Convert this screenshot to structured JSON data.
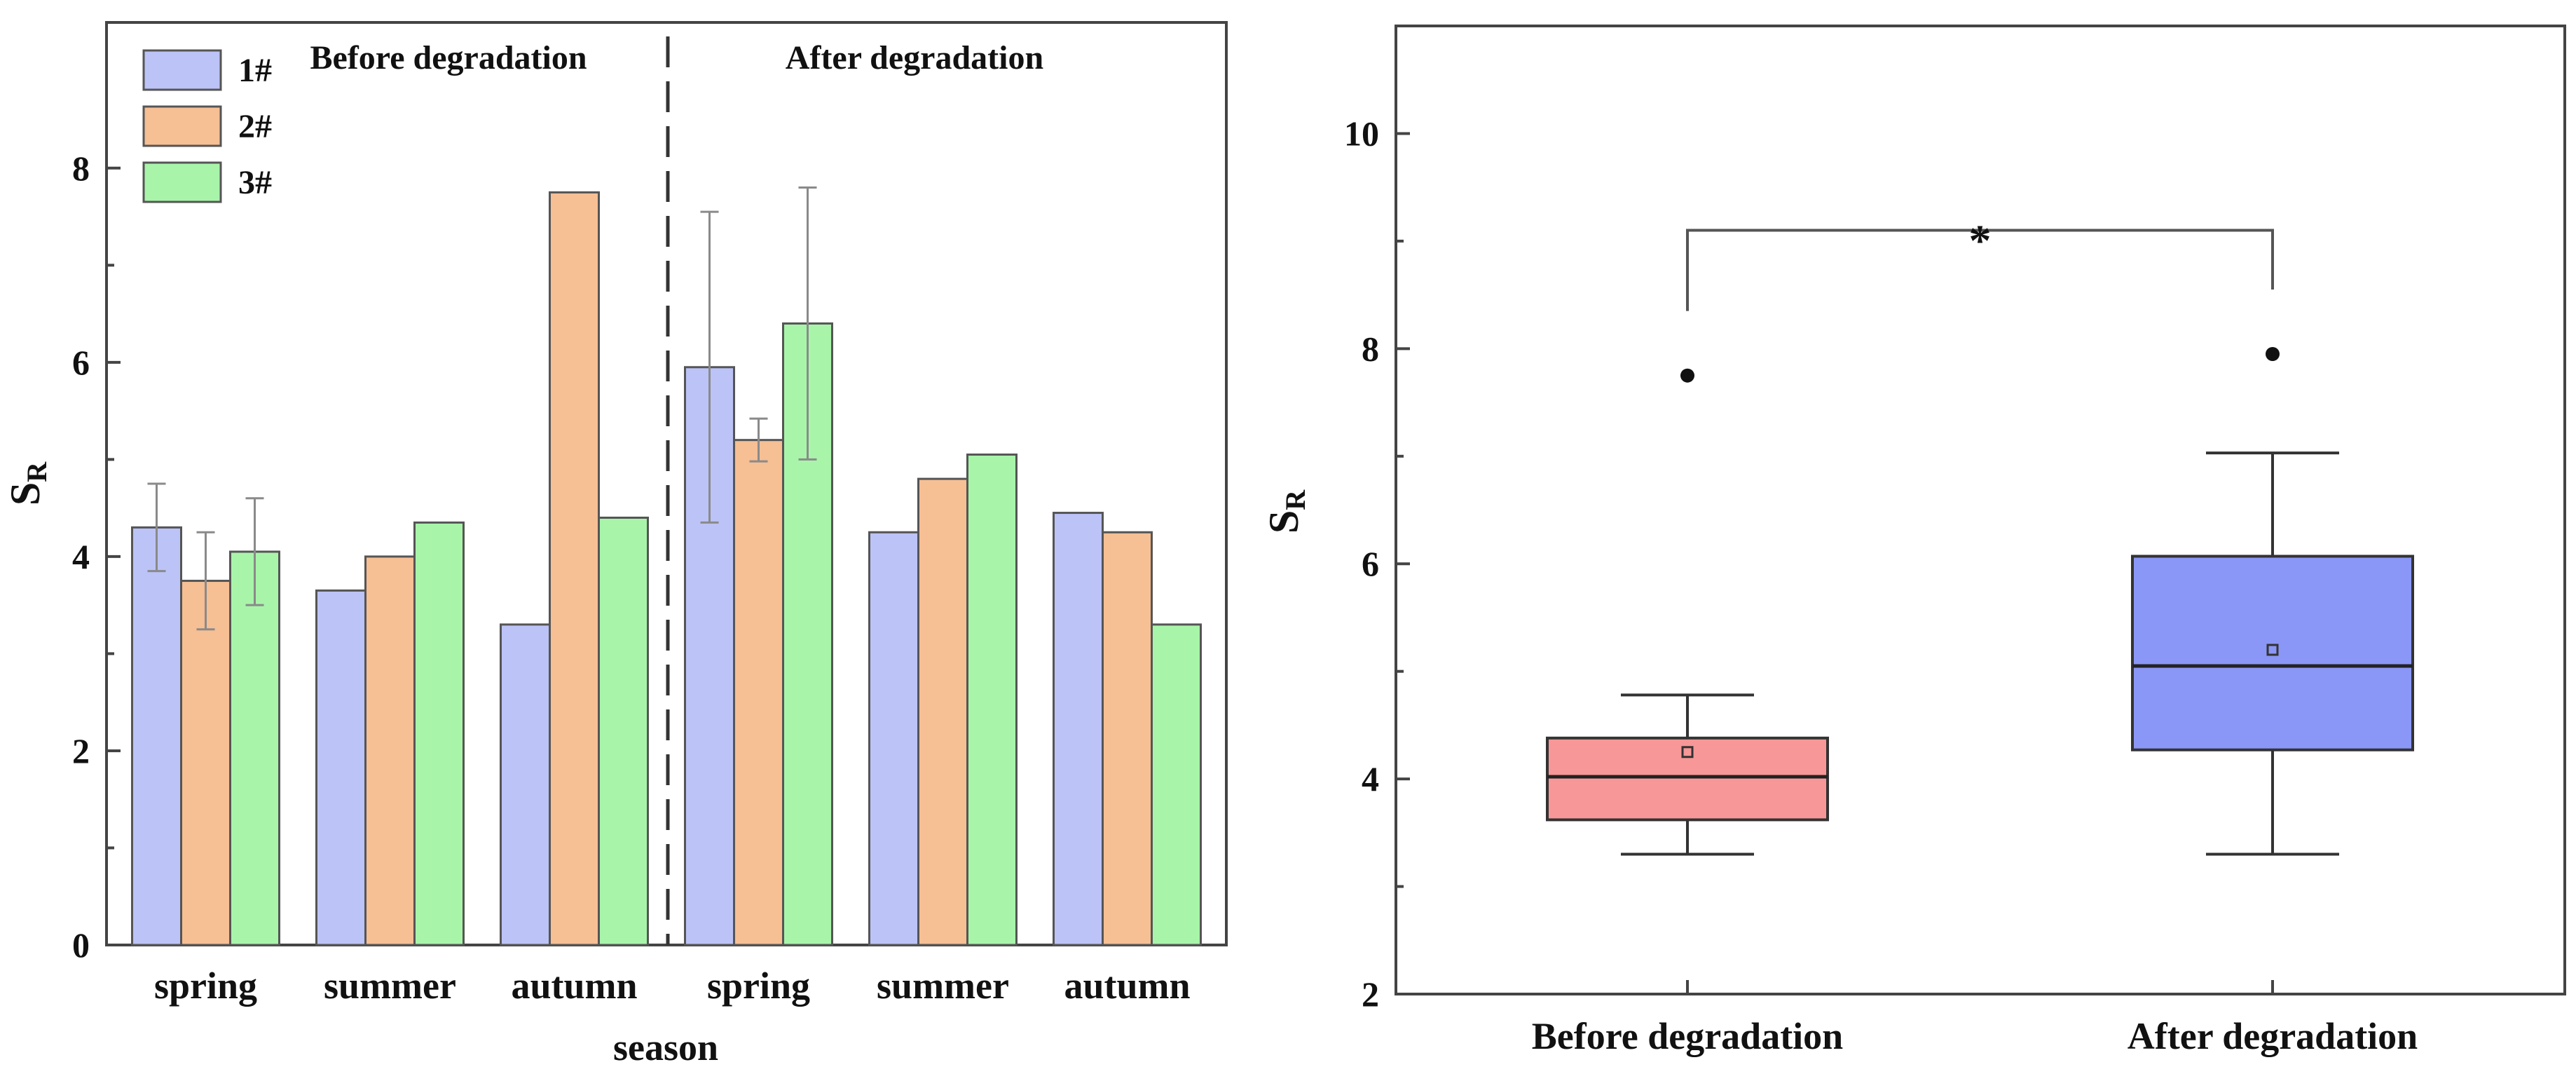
{
  "chart_data": [
    {
      "type": "bar",
      "title": "",
      "xlabel": "season",
      "ylabel": "S",
      "ylabel_sub": "R",
      "ylim": [
        0,
        9.5
      ],
      "yticks": [
        0,
        2,
        4,
        6,
        8
      ],
      "categories": [
        "spring",
        "summer",
        "autumn",
        "spring",
        "summer",
        "autumn"
      ],
      "period_labels": [
        "Before degradation",
        "After degradation"
      ],
      "series": [
        {
          "name": "1#",
          "values": [
            4.3,
            3.65,
            3.3,
            5.95,
            4.25,
            4.45
          ],
          "errors": [
            0.45,
            null,
            null,
            1.6,
            null,
            null
          ]
        },
        {
          "name": "2#",
          "values": [
            3.75,
            4.0,
            7.75,
            5.2,
            4.8,
            4.25
          ],
          "errors": [
            0.5,
            null,
            null,
            0.22,
            null,
            null
          ]
        },
        {
          "name": "3#",
          "values": [
            4.05,
            4.35,
            4.4,
            6.4,
            5.05,
            3.3
          ],
          "errors": [
            0.55,
            null,
            null,
            1.4,
            null,
            null
          ]
        }
      ],
      "colors": {
        "1#": "#bcc3f7",
        "2#": "#f6bf94",
        "3#": "#a8f5aa"
      },
      "legend": "top-left"
    },
    {
      "type": "box",
      "title": "",
      "xlabel": "",
      "ylabel": "S",
      "ylabel_sub": "R",
      "ylim": [
        2,
        11
      ],
      "yticks": [
        2,
        4,
        6,
        8,
        10
      ],
      "categories": [
        "Before degradation",
        "After degradation"
      ],
      "boxes": [
        {
          "name": "Before degradation",
          "whisker_low": 3.3,
          "q1": 3.62,
          "median": 4.02,
          "q3": 4.38,
          "whisker_high": 4.78,
          "mean": 4.25,
          "outliers": [
            7.75
          ],
          "color": "#f79797"
        },
        {
          "name": "After degradation",
          "whisker_low": 3.3,
          "q1": 4.27,
          "median": 5.05,
          "q3": 6.07,
          "whisker_high": 7.03,
          "mean": 5.2,
          "outliers": [
            7.95
          ],
          "color": "#8b97f6"
        }
      ],
      "significance": {
        "label": "*",
        "level": 9.1
      }
    }
  ]
}
